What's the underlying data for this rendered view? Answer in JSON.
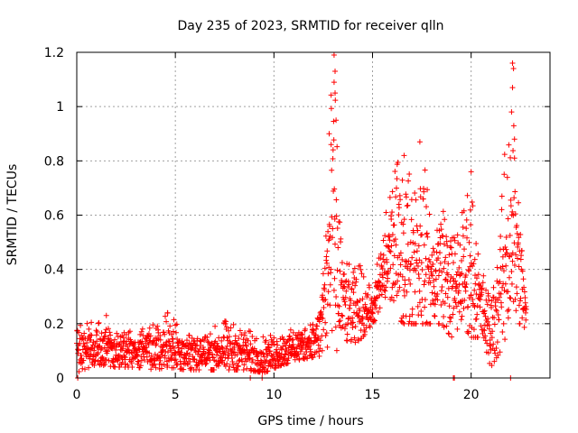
{
  "chart_data": {
    "type": "scatter",
    "title": "Day 235 of 2023, SRMTID for receiver qlln",
    "xlabel": "GPS time / hours",
    "ylabel": "SRMTID / TECUs",
    "xlim": [
      0,
      24
    ],
    "ylim": [
      0,
      1.2
    ],
    "xticks": [
      "0",
      "5",
      "10",
      "15",
      "20"
    ],
    "yticks": [
      "0",
      "0.2",
      "0.4",
      "0.6",
      "0.8",
      "1",
      "1.2"
    ],
    "xtick_values": [
      0,
      5,
      10,
      15,
      20
    ],
    "ytick_values": [
      0,
      0.2,
      0.4,
      0.6,
      0.8,
      1.0,
      1.2
    ],
    "grid": true,
    "marker": "+",
    "series": [
      {
        "name": "SRMTID",
        "color": "#ff0000",
        "envelope": [
          {
            "x": 0.0,
            "low": 0.02,
            "high": 0.19
          },
          {
            "x": 1.0,
            "low": 0.05,
            "high": 0.21
          },
          {
            "x": 2.0,
            "low": 0.04,
            "high": 0.2
          },
          {
            "x": 3.0,
            "low": 0.04,
            "high": 0.17
          },
          {
            "x": 4.0,
            "low": 0.03,
            "high": 0.2
          },
          {
            "x": 4.6,
            "low": 0.04,
            "high": 0.24
          },
          {
            "x": 5.5,
            "low": 0.03,
            "high": 0.19
          },
          {
            "x": 6.5,
            "low": 0.03,
            "high": 0.17
          },
          {
            "x": 7.5,
            "low": 0.03,
            "high": 0.21
          },
          {
            "x": 8.5,
            "low": 0.03,
            "high": 0.18
          },
          {
            "x": 9.5,
            "low": 0.02,
            "high": 0.15
          },
          {
            "x": 10.5,
            "low": 0.05,
            "high": 0.17
          },
          {
            "x": 11.5,
            "low": 0.07,
            "high": 0.19
          },
          {
            "x": 12.3,
            "low": 0.08,
            "high": 0.25
          },
          {
            "x": 12.6,
            "low": 0.1,
            "high": 0.6
          },
          {
            "x": 13.0,
            "low": 0.05,
            "high": 1.19
          },
          {
            "x": 13.5,
            "low": 0.15,
            "high": 0.45
          },
          {
            "x": 14.0,
            "low": 0.12,
            "high": 0.4
          },
          {
            "x": 14.5,
            "low": 0.15,
            "high": 0.42
          },
          {
            "x": 15.0,
            "low": 0.2,
            "high": 0.3
          },
          {
            "x": 15.5,
            "low": 0.25,
            "high": 0.55
          },
          {
            "x": 16.0,
            "low": 0.3,
            "high": 0.76
          },
          {
            "x": 16.5,
            "low": 0.2,
            "high": 0.82
          },
          {
            "x": 17.0,
            "low": 0.2,
            "high": 0.75
          },
          {
            "x": 17.5,
            "low": 0.2,
            "high": 0.87
          },
          {
            "x": 18.0,
            "low": 0.2,
            "high": 0.55
          },
          {
            "x": 18.5,
            "low": 0.2,
            "high": 0.7
          },
          {
            "x": 19.0,
            "low": 0.15,
            "high": 0.55
          },
          {
            "x": 19.5,
            "low": 0.2,
            "high": 0.6
          },
          {
            "x": 20.0,
            "low": 0.15,
            "high": 0.76
          },
          {
            "x": 20.5,
            "low": 0.15,
            "high": 0.4
          },
          {
            "x": 21.0,
            "low": 0.04,
            "high": 0.32
          },
          {
            "x": 21.5,
            "low": 0.1,
            "high": 0.6
          },
          {
            "x": 22.0,
            "low": 0.2,
            "high": 1.16
          },
          {
            "x": 22.5,
            "low": 0.2,
            "high": 0.6
          },
          {
            "x": 22.8,
            "low": 0.18,
            "high": 0.3
          }
        ],
        "outliers": [
          {
            "x": 13.05,
            "y": 1.19
          },
          {
            "x": 13.1,
            "y": 1.13
          },
          {
            "x": 13.05,
            "y": 1.09
          },
          {
            "x": 13.1,
            "y": 1.05
          },
          {
            "x": 13.15,
            "y": 0.95
          },
          {
            "x": 12.8,
            "y": 0.9
          },
          {
            "x": 12.9,
            "y": 0.86
          },
          {
            "x": 22.1,
            "y": 1.16
          },
          {
            "x": 22.15,
            "y": 1.14
          },
          {
            "x": 22.1,
            "y": 1.07
          },
          {
            "x": 22.05,
            "y": 0.98
          },
          {
            "x": 22.2,
            "y": 0.88
          },
          {
            "x": 17.4,
            "y": 0.87
          },
          {
            "x": 16.6,
            "y": 0.82
          },
          {
            "x": 20.0,
            "y": 0.76
          },
          {
            "x": 0.05,
            "y": 0.0
          },
          {
            "x": 8.8,
            "y": 0.0
          },
          {
            "x": 9.4,
            "y": 0.0
          },
          {
            "x": 19.1,
            "y": 0.0
          },
          {
            "x": 19.15,
            "y": 0.0
          },
          {
            "x": 22.0,
            "y": 0.0
          },
          {
            "x": 4.6,
            "y": 0.24
          },
          {
            "x": 1.5,
            "y": 0.23
          }
        ]
      }
    ]
  }
}
